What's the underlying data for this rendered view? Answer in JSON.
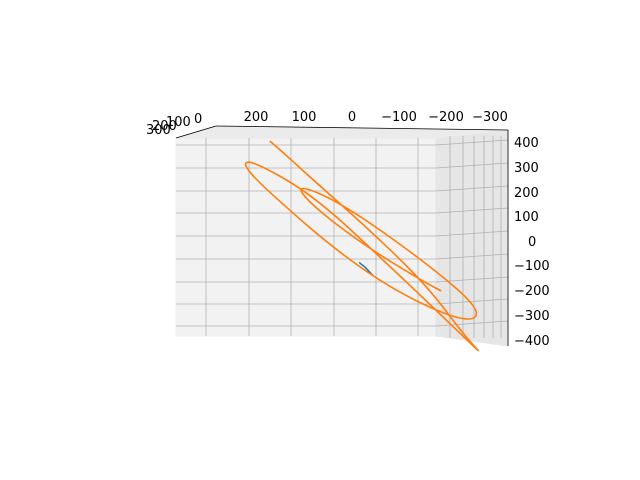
{
  "chart_data": {
    "type": "line3d",
    "title": "",
    "xlabel": "",
    "ylabel": "",
    "zlabel": "",
    "x_axis_ticks": [
      "200",
      "100",
      "0",
      "−100",
      "−200",
      "−300"
    ],
    "y_axis_ticks": [
      "300",
      "200",
      "100",
      "0"
    ],
    "z_axis_ticks": [
      "400",
      "300",
      "200",
      "100",
      "0",
      "−100",
      "−200",
      "−300",
      "−400"
    ],
    "zlim": [
      -400,
      400
    ],
    "grid": true,
    "legend": "none",
    "series": [
      {
        "color": "#1f77b4",
        "description_values": "short noisy segment near origin",
        "points": [
          [
            -15,
            2,
            -85
          ],
          [
            -20,
            2,
            -95
          ],
          [
            -25,
            2,
            -100
          ],
          [
            -30,
            2,
            -110
          ],
          [
            -35,
            2,
            -120
          ],
          [
            -40,
            2,
            -130
          ],
          [
            -45,
            2,
            -140
          ]
        ]
      },
      {
        "color": "#ff7f0e",
        "description_values": "expanding spiral orbit",
        "points": [
          [
            175,
            0,
            400
          ],
          [
            150,
            0,
            360
          ],
          [
            80,
            0,
            240
          ],
          [
            -40,
            0,
            40
          ],
          [
            -160,
            0,
            -180
          ],
          [
            -240,
            0,
            -380
          ],
          [
            -280,
            0,
            -460
          ],
          [
            -225,
            0,
            -360
          ],
          [
            -80,
            0,
            -100
          ],
          [
            80,
            0,
            180
          ],
          [
            210,
            0,
            320
          ],
          [
            235,
            0,
            310
          ],
          [
            180,
            0,
            200
          ],
          [
            20,
            0,
            -60
          ],
          [
            -120,
            0,
            -230
          ],
          [
            -250,
            0,
            -330
          ],
          [
            -275,
            0,
            -275
          ],
          [
            -160,
            0,
            -90
          ],
          [
            20,
            0,
            150
          ],
          [
            120,
            0,
            230
          ],
          [
            90,
            0,
            150
          ],
          [
            -20,
            0,
            -10
          ],
          [
            -150,
            0,
            -160
          ],
          [
            -190,
            0,
            -200
          ]
        ]
      }
    ]
  }
}
